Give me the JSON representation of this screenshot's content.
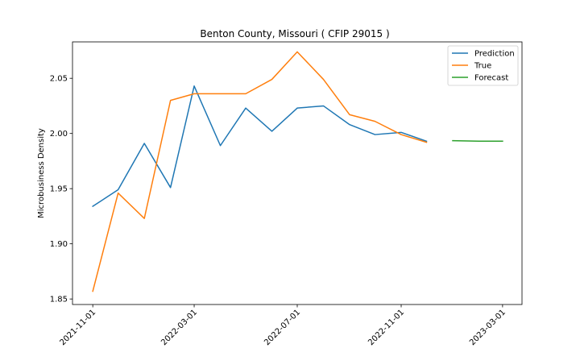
{
  "chart_data": {
    "type": "line",
    "title": "Benton County, Missouri ( CFIP 29015 )",
    "xlabel": "",
    "ylabel": "Microbusiness Density",
    "ylim": [
      1.845,
      2.083
    ],
    "xlim": [
      "2021-10-08",
      "2023-03-24"
    ],
    "x_ticks": [
      "2021-11-01",
      "2022-03-01",
      "2022-07-01",
      "2022-11-01",
      "2023-03-01"
    ],
    "y_ticks": [
      1.85,
      1.9,
      1.95,
      2.0,
      2.05
    ],
    "y_tick_labels": [
      "1.85",
      "1.90",
      "1.95",
      "2.00",
      "2.05"
    ],
    "grid": false,
    "legend_position": "top-right",
    "series": [
      {
        "name": "Prediction",
        "color": "#1f77b4",
        "x": [
          "2021-11-01",
          "2021-12-01",
          "2022-01-01",
          "2022-02-01",
          "2022-03-01",
          "2022-04-01",
          "2022-05-01",
          "2022-06-01",
          "2022-07-01",
          "2022-08-01",
          "2022-09-01",
          "2022-10-01",
          "2022-11-01",
          "2022-12-01"
        ],
        "values": [
          1.934,
          1.949,
          1.991,
          1.951,
          2.043,
          1.989,
          2.023,
          2.002,
          2.023,
          2.025,
          2.008,
          1.999,
          2.001,
          1.993
        ]
      },
      {
        "name": "True",
        "color": "#ff7f0e",
        "x": [
          "2021-11-01",
          "2021-12-01",
          "2022-01-01",
          "2022-02-01",
          "2022-03-01",
          "2022-04-01",
          "2022-05-01",
          "2022-06-01",
          "2022-07-01",
          "2022-08-01",
          "2022-09-01",
          "2022-10-01",
          "2022-11-01",
          "2022-12-01"
        ],
        "values": [
          1.857,
          1.946,
          1.923,
          2.03,
          2.036,
          2.036,
          2.036,
          2.049,
          2.074,
          2.049,
          2.017,
          2.011,
          1.999,
          1.992
        ]
      },
      {
        "name": "Forecast",
        "color": "#2ca02c",
        "x": [
          "2023-01-01",
          "2023-02-01",
          "2023-03-01"
        ],
        "values": [
          1.9935,
          1.993,
          1.993
        ]
      }
    ]
  }
}
